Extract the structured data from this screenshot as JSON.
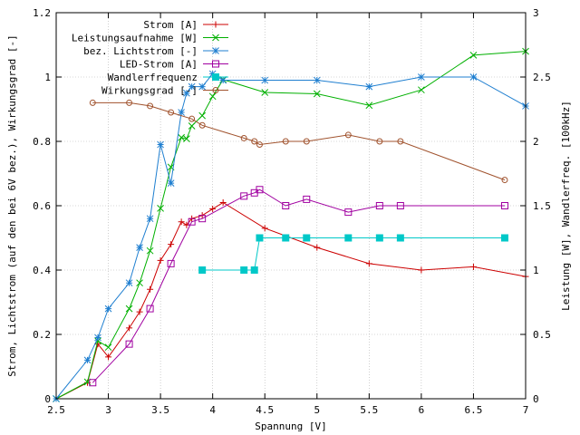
{
  "chart_data": {
    "type": "line",
    "title": "",
    "xlabel": "Spannung [V]",
    "ylabel": "Strom, Lichtstrom (auf den bei 6V bez.), Wirkungsgrad [-]",
    "y2label": "Leistung [W], Wandlerfreq. [100kHz]",
    "xlim": [
      2.5,
      7
    ],
    "ylim": [
      0,
      1.2
    ],
    "y2lim": [
      0,
      3
    ],
    "xticks": [
      "2.5",
      "3",
      "3.5",
      "4",
      "4.5",
      "5",
      "5.5",
      "6",
      "6.5",
      "7"
    ],
    "yticks": [
      "0",
      "0.2",
      "0.4",
      "0.6",
      "0.8",
      "1",
      "1.2"
    ],
    "y2ticks": [
      "0",
      "0.5",
      "1",
      "1.5",
      "2",
      "2.5",
      "3"
    ],
    "grid": true,
    "legend_position": "top-left",
    "series": [
      {
        "name": "Strom [A]",
        "axis": "y1",
        "color": "#cc0000",
        "marker": "plus",
        "x": [
          2.5,
          2.8,
          2.9,
          3.0,
          3.2,
          3.3,
          3.4,
          3.5,
          3.6,
          3.7,
          3.75,
          3.8,
          3.9,
          4.0,
          4.1,
          4.5,
          5.0,
          5.5,
          6.0,
          6.5,
          7.0
        ],
        "y": [
          0,
          0.05,
          0.17,
          0.13,
          0.22,
          0.27,
          0.34,
          0.43,
          0.48,
          0.55,
          0.54,
          0.56,
          0.57,
          0.59,
          0.61,
          0.53,
          0.47,
          0.42,
          0.4,
          0.41,
          0.38
        ]
      },
      {
        "name": "Leistungsaufnahme [W]",
        "axis": "y2",
        "color": "#00b000",
        "marker": "cross",
        "x": [
          2.5,
          2.8,
          2.9,
          3.0,
          3.2,
          3.3,
          3.4,
          3.5,
          3.6,
          3.7,
          3.75,
          3.8,
          3.9,
          4.0,
          4.1,
          4.5,
          5.0,
          5.5,
          6.0,
          6.5,
          7.0
        ],
        "y": [
          0,
          0.13,
          0.45,
          0.4,
          0.7,
          0.9,
          1.15,
          1.48,
          1.8,
          2.03,
          2.02,
          2.12,
          2.2,
          2.35,
          2.48,
          2.38,
          2.37,
          2.28,
          2.4,
          2.67,
          2.7
        ]
      },
      {
        "name": "bez. Lichtstrom [-]",
        "axis": "y1",
        "color": "#1f7fd0",
        "marker": "star",
        "x": [
          2.5,
          2.8,
          2.9,
          3.0,
          3.2,
          3.3,
          3.4,
          3.5,
          3.6,
          3.7,
          3.75,
          3.8,
          3.9,
          4.0,
          4.1,
          4.5,
          5.0,
          5.5,
          6.0,
          6.5,
          7.0
        ],
        "y": [
          0,
          0.12,
          0.19,
          0.28,
          0.36,
          0.47,
          0.56,
          0.79,
          0.67,
          0.89,
          0.95,
          0.97,
          0.97,
          1.01,
          0.99,
          0.99,
          0.99,
          0.97,
          1.0,
          1.0,
          0.91
        ]
      },
      {
        "name": "LED-Strom [A]",
        "axis": "y1",
        "color": "#a000a0",
        "marker": "square-open",
        "x": [
          2.85,
          3.2,
          3.4,
          3.6,
          3.8,
          3.9,
          4.3,
          4.4,
          4.45,
          4.7,
          4.9,
          5.3,
          5.6,
          5.8,
          6.8
        ],
        "y": [
          0.05,
          0.17,
          0.28,
          0.42,
          0.55,
          0.56,
          0.63,
          0.64,
          0.65,
          0.6,
          0.62,
          0.58,
          0.6,
          0.6,
          0.6
        ]
      },
      {
        "name": "Wandlerfrequenz",
        "axis": "y2",
        "color": "#00c8c8",
        "marker": "square-filled",
        "x": [
          3.9,
          4.3,
          4.4,
          4.45,
          4.7,
          4.9,
          5.3,
          5.6,
          5.8,
          6.8
        ],
        "y": [
          1.0,
          1.0,
          1.0,
          1.25,
          1.25,
          1.25,
          1.25,
          1.25,
          1.25,
          1.25
        ]
      },
      {
        "name": "Wirkungsgrad [-]",
        "axis": "y1",
        "color": "#a0522d",
        "marker": "circle-open",
        "x": [
          2.85,
          3.2,
          3.4,
          3.6,
          3.8,
          3.9,
          4.3,
          4.4,
          4.45,
          4.7,
          4.9,
          5.3,
          5.6,
          5.8,
          6.8
        ],
        "y": [
          0.92,
          0.92,
          0.91,
          0.89,
          0.87,
          0.85,
          0.81,
          0.8,
          0.79,
          0.8,
          0.8,
          0.82,
          0.8,
          0.8,
          0.68
        ]
      }
    ]
  }
}
